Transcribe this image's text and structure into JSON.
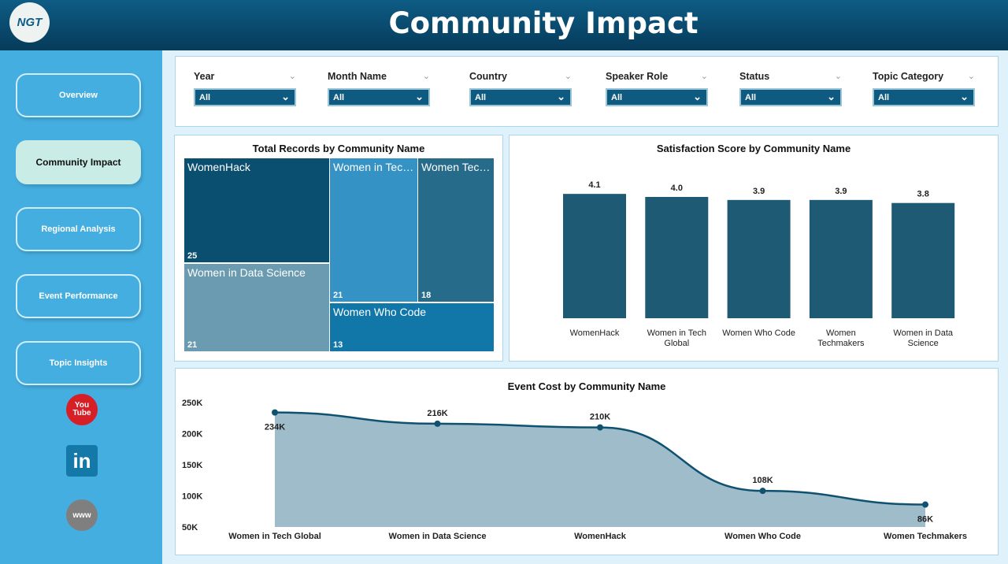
{
  "header": {
    "title": "Community Impact",
    "logo_text": "NGT"
  },
  "sidebar": {
    "items": [
      {
        "label": "Overview"
      },
      {
        "label": "Community Impact",
        "active": true
      },
      {
        "label": "Regional Analysis"
      },
      {
        "label": "Event Performance"
      },
      {
        "label": "Topic Insights"
      }
    ],
    "social": [
      {
        "icon": "youtube-icon",
        "text": "You Tube"
      },
      {
        "icon": "linkedin-icon",
        "text": "in"
      },
      {
        "icon": "globe-www-icon",
        "text": "www"
      }
    ]
  },
  "filters": [
    {
      "label": "Year",
      "value": "All"
    },
    {
      "label": "Month Name",
      "value": "All"
    },
    {
      "label": "Country",
      "value": "All"
    },
    {
      "label": "Speaker Role",
      "value": "All"
    },
    {
      "label": "Status",
      "value": "All"
    },
    {
      "label": "Topic Category",
      "value": "All"
    }
  ],
  "colors": {
    "accent": "#0f5a80",
    "sidebar": "#45aee0",
    "bar": "#1e5a73",
    "area_fill": "#9fbccb",
    "area_line": "#0f5270"
  },
  "chart_data": [
    {
      "type": "treemap",
      "title": "Total Records by Community Name",
      "items": [
        {
          "name": "WomenHack",
          "label": "WomenHack",
          "value": 25,
          "color": "#0a4f70"
        },
        {
          "name": "Women in Data Science",
          "label": "Women in Data Science",
          "value": 21,
          "color": "#6a9bb0"
        },
        {
          "name": "Women in Tech Global",
          "label": "Women in Tech...",
          "value": 21,
          "color": "#3592c4"
        },
        {
          "name": "Women Techmakers",
          "label": "Women Tech...",
          "value": 18,
          "color": "#266b8a"
        },
        {
          "name": "Women Who Code",
          "label": "Women Who Code",
          "value": 13,
          "color": "#1177a8"
        }
      ]
    },
    {
      "type": "bar",
      "title": "Satisfaction Score by Community Name",
      "categories": [
        "WomenHack",
        "Women in Tech Global",
        "Women Who Code",
        "Women Techmakers",
        "Women in Data Science"
      ],
      "values": [
        4.1,
        4.0,
        3.9,
        3.9,
        3.8
      ],
      "labels": [
        "4.1",
        "4.0",
        "3.9",
        "3.9",
        "3.8"
      ]
    },
    {
      "type": "area",
      "title": "Event Cost by Community Name",
      "categories": [
        "Women in Tech Global",
        "Women in Data Science",
        "WomenHack",
        "Women Who Code",
        "Women Techmakers"
      ],
      "values": [
        234,
        216,
        210,
        108,
        86
      ],
      "labels": [
        "234K",
        "216K",
        "210K",
        "108K",
        "86K"
      ],
      "yticks": [
        "250K",
        "200K",
        "150K",
        "100K",
        "50K"
      ],
      "ylim": [
        50,
        250
      ]
    }
  ]
}
